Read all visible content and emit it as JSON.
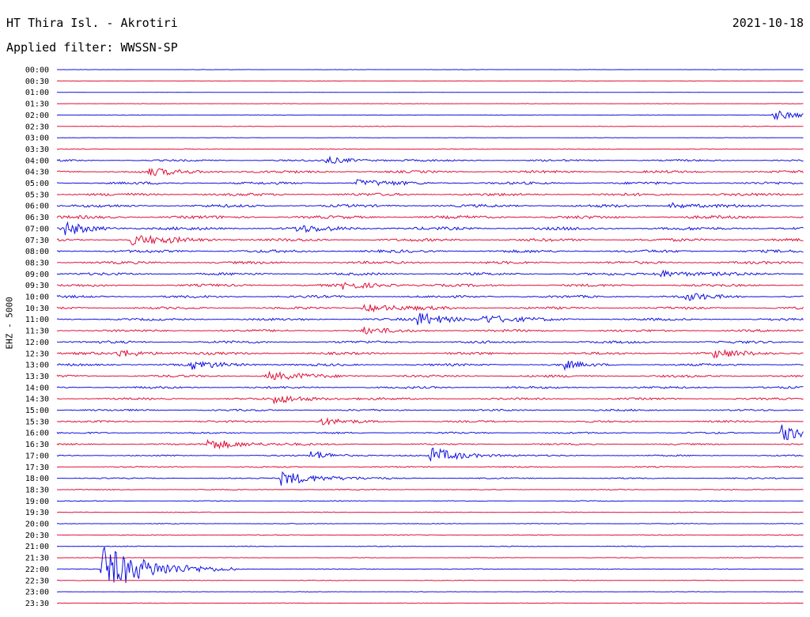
{
  "header": {
    "station": "HT Thira Isl. - Akrotiri",
    "date": "2021-10-18",
    "filter": "Applied filter: WWSSN-SP"
  },
  "channel_label": "EHZ - 5000",
  "colors": {
    "even": "#1010e0",
    "odd": "#e0103a"
  },
  "chart_data": {
    "type": "line",
    "title": "HT Thira Isl. - Akrotiri",
    "subtitle": "Applied filter: WWSSN-SP",
    "ylabel": "EHZ - 5000",
    "xlabel": "",
    "rows": [
      "00:00",
      "00:30",
      "01:00",
      "01:30",
      "02:00",
      "02:30",
      "03:00",
      "03:30",
      "04:00",
      "04:30",
      "05:00",
      "05:30",
      "06:00",
      "06:30",
      "07:00",
      "07:30",
      "08:00",
      "08:30",
      "09:00",
      "09:30",
      "10:00",
      "10:30",
      "11:00",
      "11:30",
      "12:00",
      "12:30",
      "13:00",
      "13:30",
      "14:00",
      "14:30",
      "15:00",
      "15:30",
      "16:00",
      "16:30",
      "17:00",
      "17:30",
      "18:00",
      "18:30",
      "19:00",
      "19:30",
      "20:00",
      "20:30",
      "21:00",
      "21:30",
      "22:00",
      "22:30",
      "23:00",
      "23:30"
    ],
    "noise_level": [
      0.2,
      0.25,
      0.15,
      0.25,
      0.3,
      0.4,
      0.2,
      0.5,
      1.2,
      1.6,
      1.6,
      1.8,
      1.8,
      2.0,
      2.0,
      1.8,
      1.8,
      1.7,
      1.6,
      1.6,
      1.6,
      1.5,
      1.5,
      1.5,
      1.6,
      1.6,
      1.5,
      1.5,
      1.4,
      1.3,
      1.2,
      1.2,
      1.1,
      1.0,
      0.9,
      0.8,
      0.8,
      0.6,
      0.5,
      0.5,
      0.5,
      0.5,
      0.5,
      0.4,
      0.5,
      0.4,
      0.3,
      0.3
    ],
    "events": [
      {
        "row": 4,
        "t": 0.96,
        "amp": 6,
        "dur": 0.04
      },
      {
        "row": 8,
        "t": 0.36,
        "amp": 4,
        "dur": 0.04
      },
      {
        "row": 9,
        "t": 0.12,
        "amp": 4,
        "dur": 0.05
      },
      {
        "row": 10,
        "t": 0.4,
        "amp": 4,
        "dur": 0.04
      },
      {
        "row": 12,
        "t": 0.82,
        "amp": 4,
        "dur": 0.03
      },
      {
        "row": 14,
        "t": 0.01,
        "amp": 8,
        "dur": 0.03
      },
      {
        "row": 14,
        "t": 0.32,
        "amp": 4,
        "dur": 0.04
      },
      {
        "row": 15,
        "t": 0.1,
        "amp": 6,
        "dur": 0.05
      },
      {
        "row": 18,
        "t": 0.8,
        "amp": 5,
        "dur": 0.05
      },
      {
        "row": 19,
        "t": 0.38,
        "amp": 4,
        "dur": 0.05
      },
      {
        "row": 20,
        "t": 0.84,
        "amp": 5,
        "dur": 0.03
      },
      {
        "row": 21,
        "t": 0.41,
        "amp": 5,
        "dur": 0.05
      },
      {
        "row": 22,
        "t": 0.48,
        "amp": 9,
        "dur": 0.04
      },
      {
        "row": 22,
        "t": 0.57,
        "amp": 5,
        "dur": 0.04
      },
      {
        "row": 23,
        "t": 0.41,
        "amp": 4,
        "dur": 0.03
      },
      {
        "row": 25,
        "t": 0.08,
        "amp": 5,
        "dur": 0.04
      },
      {
        "row": 25,
        "t": 0.88,
        "amp": 5,
        "dur": 0.04
      },
      {
        "row": 26,
        "t": 0.18,
        "amp": 5,
        "dur": 0.04
      },
      {
        "row": 26,
        "t": 0.68,
        "amp": 5,
        "dur": 0.02
      },
      {
        "row": 27,
        "t": 0.28,
        "amp": 5,
        "dur": 0.05
      },
      {
        "row": 29,
        "t": 0.29,
        "amp": 5,
        "dur": 0.05
      },
      {
        "row": 31,
        "t": 0.35,
        "amp": 5,
        "dur": 0.03
      },
      {
        "row": 32,
        "t": 0.97,
        "amp": 12,
        "dur": 0.03
      },
      {
        "row": 33,
        "t": 0.2,
        "amp": 7,
        "dur": 0.05
      },
      {
        "row": 34,
        "t": 0.34,
        "amp": 6,
        "dur": 0.03
      },
      {
        "row": 34,
        "t": 0.5,
        "amp": 10,
        "dur": 0.04
      },
      {
        "row": 36,
        "t": 0.3,
        "amp": 9,
        "dur": 0.05
      },
      {
        "row": 44,
        "t": 0.06,
        "amp": 30,
        "dur": 0.06
      }
    ]
  }
}
